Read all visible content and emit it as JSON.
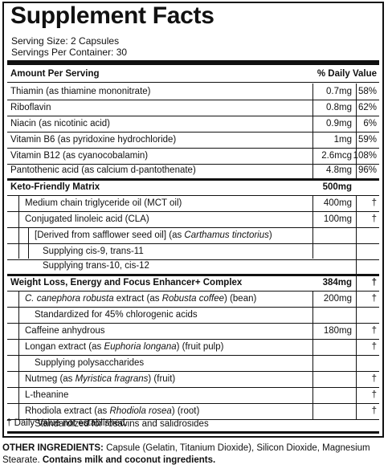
{
  "title": "Supplement Facts",
  "serving_size": "Serving Size: 2 Capsules",
  "servings_per_container": "Servings Per Container: 30",
  "header": {
    "amount": "Amount Per Serving",
    "dv": "% Daily Value"
  },
  "vitamins": [
    {
      "name": "Thiamin (as thiamine mononitrate)",
      "amount": "0.7mg",
      "dv": "58%"
    },
    {
      "name": "Riboflavin",
      "amount": "0.8mg",
      "dv": "62%"
    },
    {
      "name": "Niacin (as nicotinic acid)",
      "amount": "0.9mg",
      "dv": "6%"
    },
    {
      "name": "Vitamin B6 (as pyridoxine hydrochloride)",
      "amount": "1mg",
      "dv": "59%"
    },
    {
      "name": "Vitamin B12 (as cyanocobalamin)",
      "amount": "2.6mcg",
      "dv": "108%"
    },
    {
      "name": "Pantothenic acid (as calcium d-pantothenate)",
      "amount": "4.8mg",
      "dv": "96%"
    }
  ],
  "keto": {
    "name": "Keto-Friendly Matrix",
    "amount": "500mg",
    "mct": {
      "name": "Medium chain triglyceride oil (MCT oil)",
      "amount": "400mg",
      "dv": "†"
    },
    "cla": {
      "name": "Conjugated linoleic acid (CLA)",
      "amount": "100mg",
      "dv": "†"
    },
    "derived_pre": "[Derived from safflower seed oil] (as ",
    "derived_italic": "Carthamus tinctorius",
    "derived_post": ")",
    "supply1": "Supplying cis-9, trans-11",
    "supply2": "Supplying trans-10, cis-12"
  },
  "weight": {
    "name": "Weight Loss, Energy and Focus Enhancer+ Complex",
    "amount": "384mg",
    "dv": "†",
    "cane_italic": "C. canephora robusta",
    "cane_mid": " extract (as ",
    "cane_italic2": "Robusta coffee",
    "cane_post": ") (bean)",
    "cane_amount": "200mg",
    "cane_dv": "†",
    "cane_std": "Standardized for 45% chlorogenic acids",
    "caffeine": "Caffeine anhydrous",
    "caffeine_amount": "180mg",
    "caffeine_dv": "†",
    "longan_pre": "Longan extract (as ",
    "longan_italic": "Euphoria longana",
    "longan_post": ") (fruit pulp)",
    "longan_dv": "†",
    "longan_supply": "Supplying polysaccharides",
    "nutmeg_pre": "Nutmeg (as ",
    "nutmeg_italic": "Myristica fragrans",
    "nutmeg_post": ") (fruit)",
    "nutmeg_dv": "†",
    "theanine": "L-theanine",
    "theanine_dv": "†",
    "rhod_pre": "Rhodiola extract (as ",
    "rhod_italic": "Rhodiola rosea",
    "rhod_post": ") (root)",
    "rhod_dv": "†",
    "rhod_std": "Standardized for rosavins and salidrosides"
  },
  "footnote": "† Daily Value not established.",
  "other_label": "OTHER INGREDIENTS:",
  "other_text": " Capsule (Gelatin, Titanium Dioxide), Silicon Dioxide, Magnesium Stearate. ",
  "other_bold": "Contains milk and coconut ingredients."
}
